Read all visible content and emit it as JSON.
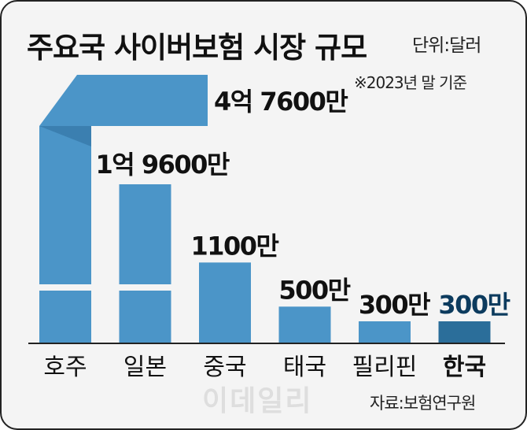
{
  "title": "주요국 사이버보험 시장 규모",
  "unit": "단위:달러",
  "note": "※2023년 말 기준",
  "source": "자료:보험연구원",
  "watermark": "이데일리",
  "colors": {
    "bar": "#4b95c8",
    "bar_dark": "#3b7fb0",
    "highlight_bar": "#2b6e9a",
    "highlight_text": "#0c3b5e"
  },
  "chart_data": {
    "type": "bar",
    "title": "주요국 사이버보험 시장 규모",
    "unit": "달러",
    "categories": [
      "호주",
      "일본",
      "중국",
      "태국",
      "필리핀",
      "한국"
    ],
    "values": [
      476000000,
      196000000,
      11000000,
      5000000,
      3000000,
      3000000
    ],
    "value_labels": [
      "4억 7600만",
      "1억 9600만",
      "1100만",
      "500만",
      "300만",
      "300만"
    ],
    "highlight": "한국",
    "broken_axis": true
  }
}
